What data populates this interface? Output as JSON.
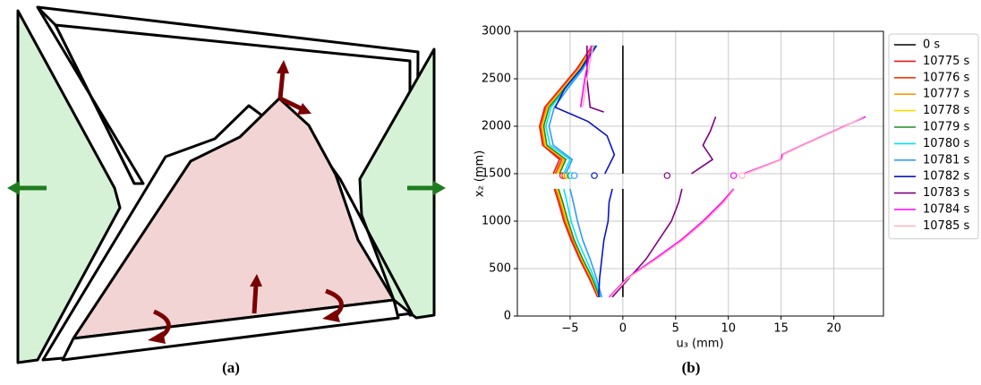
{
  "panels": [
    "(a)",
    "(b)"
  ],
  "chart_data": {
    "type": "line",
    "x_label": "u₃ (mm)",
    "y_label": "x₂ (mm)",
    "xlim": [
      -10,
      24.7
    ],
    "ylim": [
      0,
      3000
    ],
    "xticks": [
      {
        "value": -5,
        "label": "−5"
      },
      0,
      5,
      10,
      15,
      20
    ],
    "yticks": [
      0,
      500,
      1000,
      1500,
      2000,
      2500,
      3000
    ],
    "grid": true,
    "legend": "outside right",
    "series": [
      {
        "name": "0 s",
        "color": "#000000",
        "x": [
          0,
          0,
          null,
          0,
          0
        ],
        "values": [
          200,
          1340,
          null,
          1500,
          2850
        ]
      },
      {
        "name": "10775 s",
        "color": "#e31a1c",
        "x": [
          -2.4,
          -3.2,
          -4.1,
          -4.9,
          -5.6,
          -6.1,
          -6.5,
          null,
          -6.6,
          -6.0,
          -7.6,
          -7.9,
          -7.4,
          -5.9,
          -4.4,
          -2.9
        ],
        "values": [
          200,
          400,
          600,
          800,
          1000,
          1200,
          1340,
          null,
          1500,
          1650,
          1800,
          2000,
          2200,
          2400,
          2600,
          2850
        ],
        "marker": {
          "x": -5.7,
          "y": 1480
        }
      },
      {
        "name": "10776 s",
        "color": "#ff3300",
        "x": [
          -2.3,
          -3.1,
          -4.0,
          -4.8,
          -5.5,
          -6.0,
          -6.4,
          null,
          -6.4,
          -5.8,
          -7.5,
          -7.8,
          -7.3,
          -5.8,
          -4.3,
          -2.8
        ],
        "values": [
          200,
          400,
          600,
          800,
          1000,
          1200,
          1340,
          null,
          1500,
          1650,
          1800,
          2000,
          2200,
          2400,
          2600,
          2850
        ],
        "marker": {
          "x": -5.5,
          "y": 1480
        }
      },
      {
        "name": "10777 s",
        "color": "#ff9900",
        "x": [
          -2.3,
          -3.0,
          -3.9,
          -4.7,
          -5.4,
          -5.9,
          -6.3,
          null,
          -6.3,
          -5.6,
          -7.4,
          -7.7,
          -7.2,
          -5.7,
          -4.2,
          -2.8
        ],
        "values": [
          200,
          400,
          600,
          800,
          1000,
          1200,
          1340,
          null,
          1500,
          1650,
          1800,
          2000,
          2200,
          2400,
          2600,
          2850
        ],
        "marker": {
          "x": -5.3,
          "y": 1480
        }
      },
      {
        "name": "10778 s",
        "color": "#ffd700",
        "x": [
          -2.2,
          -3.0,
          -3.9,
          -4.6,
          -5.3,
          -5.8,
          -6.2,
          null,
          -6.2,
          -5.5,
          -7.3,
          -7.6,
          -7.1,
          -5.6,
          -4.1,
          -2.7
        ],
        "values": [
          200,
          400,
          600,
          800,
          1000,
          1200,
          1340,
          null,
          1500,
          1650,
          1800,
          2000,
          2200,
          2400,
          2600,
          2850
        ],
        "marker": {
          "x": -5.2,
          "y": 1480
        }
      },
      {
        "name": "10779 s",
        "color": "#228b22",
        "x": [
          -2.2,
          -2.9,
          -3.8,
          -4.6,
          -5.2,
          -5.7,
          -6.1,
          null,
          -6.0,
          -5.4,
          -7.2,
          -7.5,
          -7.0,
          -5.5,
          -4.0,
          -2.7
        ],
        "values": [
          200,
          400,
          600,
          800,
          1000,
          1200,
          1340,
          null,
          1500,
          1650,
          1800,
          2000,
          2200,
          2400,
          2600,
          2850
        ],
        "marker": {
          "x": -5.0,
          "y": 1480
        }
      },
      {
        "name": "10780 s",
        "color": "#00e5ee",
        "x": [
          -2.1,
          -2.7,
          -3.5,
          -4.3,
          -4.9,
          -5.3,
          -5.6,
          null,
          -5.6,
          -5.0,
          -6.9,
          -7.3,
          -6.8,
          -5.4,
          -3.9,
          -2.6
        ],
        "values": [
          200,
          400,
          600,
          800,
          1000,
          1200,
          1340,
          null,
          1500,
          1650,
          1800,
          2000,
          2200,
          2400,
          2600,
          2850
        ],
        "marker": {
          "x": -4.9,
          "y": 1480
        }
      },
      {
        "name": "10781 s",
        "color": "#3399ff",
        "x": [
          -2.0,
          -2.5,
          -3.1,
          -3.8,
          -4.3,
          -4.7,
          -5.0,
          null,
          -5.4,
          -4.8,
          -6.6,
          -7.0,
          -6.5,
          -5.2,
          -3.8,
          -2.5
        ],
        "values": [
          200,
          400,
          600,
          800,
          1000,
          1200,
          1340,
          null,
          1500,
          1650,
          1800,
          2000,
          2200,
          2400,
          2600,
          2850
        ],
        "marker": {
          "x": -4.6,
          "y": 1480
        }
      },
      {
        "name": "10782 s",
        "color": "#0a14c8",
        "x": [
          -2.3,
          -2.2,
          -2.0,
          -1.8,
          -1.4,
          -1.3,
          -1.0,
          null,
          -1.7,
          -0.8,
          -1.5,
          -3.3,
          -6.4,
          -5.5,
          -4.0,
          -2.5
        ],
        "values": [
          200,
          400,
          600,
          800,
          1000,
          1200,
          1340,
          null,
          1500,
          1700,
          1900,
          2050,
          2200,
          2400,
          2600,
          2850
        ],
        "marker": {
          "x": -2.7,
          "y": 1480
        }
      },
      {
        "name": "10783 s",
        "color": "#800080",
        "x": [
          -1.0,
          0.6,
          2.2,
          3.4,
          4.6,
          5.3,
          5.6,
          null,
          6.5,
          8.5,
          7.6,
          8.3,
          8.8,
          null,
          -1.8,
          -3.1,
          -3.4,
          -3.4
        ],
        "values": [
          200,
          400,
          600,
          800,
          1000,
          1200,
          1340,
          null,
          1500,
          1650,
          1800,
          1950,
          2100,
          null,
          2150,
          2200,
          2500,
          2850
        ],
        "marker": {
          "x": 4.2,
          "y": 1480
        }
      },
      {
        "name": "10784 s",
        "color": "#ff00ff",
        "x": [
          -1.3,
          0.4,
          3.0,
          5.5,
          7.6,
          9.4,
          10.5,
          null,
          11.2,
          15.0,
          15.1,
          17.0,
          21.0,
          23.0,
          null,
          -4.0,
          -3.6,
          -3.0
        ],
        "values": [
          200,
          400,
          600,
          800,
          1000,
          1200,
          1340,
          null,
          1490,
          1650,
          1700,
          1800,
          2000,
          2100,
          null,
          2200,
          2500,
          2850
        ],
        "marker": {
          "x": 10.5,
          "y": 1480
        }
      },
      {
        "name": "10785 s",
        "color": "#ffb6c1",
        "x": [
          -1.2,
          0.5,
          3.2,
          5.7,
          7.8,
          9.6,
          10.6,
          null,
          11.4,
          15.1,
          15.2,
          17.1,
          21.1,
          22.8,
          null,
          -3.8,
          -3.4,
          -2.8
        ],
        "values": [
          200,
          400,
          600,
          800,
          1000,
          1200,
          1340,
          null,
          1490,
          1650,
          1700,
          1800,
          2000,
          2100,
          null,
          2200,
          2500,
          2850
        ],
        "marker": {
          "x": 11.3,
          "y": 1480
        }
      }
    ]
  }
}
